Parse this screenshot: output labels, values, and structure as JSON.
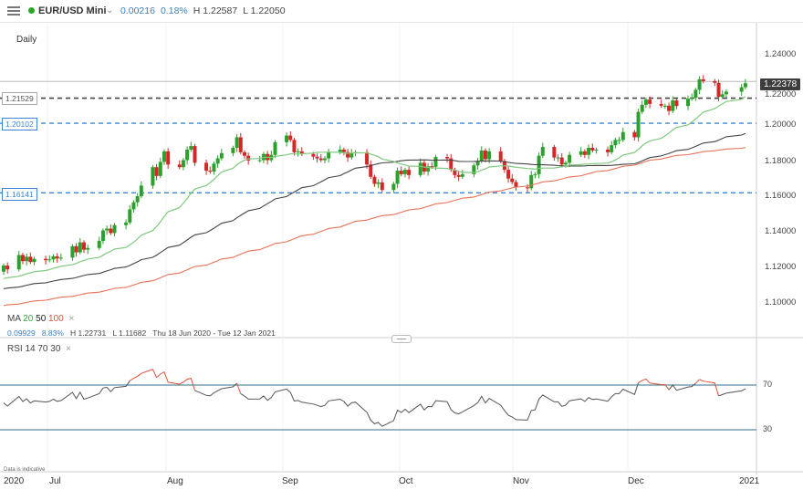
{
  "header": {
    "symbol": "EUR/USD Mini",
    "change": "0.00216",
    "change_pct": "0.18%",
    "high": "H 1.22587",
    "low": "L 1.22050"
  },
  "timeframe": "Daily",
  "price_labels": {
    "current": "1.22378",
    "levels": [
      "1.21529",
      "1.20102",
      "1.16141"
    ]
  },
  "price_axis": [
    "1.24000",
    "1.22000",
    "1.20000",
    "1.18000",
    "1.16000",
    "1.14000",
    "1.12000",
    "1.10000"
  ],
  "ma_legend": {
    "title": "MA",
    "p1": "20",
    "p2": "50",
    "p3": "100",
    "close": "×"
  },
  "stats": {
    "range": "0.09929",
    "range_pct": "8.83%",
    "high": "H 1.22731",
    "low": "L 1.11682",
    "dates": "Thu 18 Jun 2020 - Tue 12 Jan 2021"
  },
  "rsi_legend": {
    "title": "RSI",
    "p1": "14",
    "p2": "70",
    "p3": "30",
    "close": "×"
  },
  "rsi_axis": [
    "70",
    "30"
  ],
  "time_axis": [
    "2020",
    "Jul",
    "Aug",
    "Sep",
    "Oct",
    "Nov",
    "Dec",
    "2021"
  ],
  "credit": "Data is indicative",
  "colors": {
    "up": "#2ca02c",
    "down": "#d62728",
    "ma20": "#7fc97f",
    "ma50": "#444444",
    "ma100": "#e8735a",
    "level": "#3a86d4",
    "rsi": "#555555",
    "rsi_hot": "#e0533a"
  },
  "icons": [
    "menu-icon",
    "live-dot-icon",
    "chevron-down-icon"
  ],
  "chart_data": {
    "type": "candlestick",
    "title": "EUR/USD Mini",
    "timeframe": "Daily",
    "ylim": [
      1.1,
      1.245
    ],
    "x": [
      "2020-06-18",
      "2020-06-19",
      "2020-06-22",
      "2020-06-23",
      "2020-06-24",
      "2020-06-25",
      "2020-06-26",
      "2020-06-29",
      "2020-06-30",
      "2020-07-01",
      "2020-07-02",
      "2020-07-03",
      "2020-07-06",
      "2020-07-07",
      "2020-07-08",
      "2020-07-09",
      "2020-07-10",
      "2020-07-13",
      "2020-07-14",
      "2020-07-15",
      "2020-07-16",
      "2020-07-17",
      "2020-07-20",
      "2020-07-21",
      "2020-07-22",
      "2020-07-23",
      "2020-07-24",
      "2020-07-27",
      "2020-07-28",
      "2020-07-29",
      "2020-07-30",
      "2020-07-31",
      "2020-08-03",
      "2020-08-04",
      "2020-08-05",
      "2020-08-06",
      "2020-08-07",
      "2020-08-10",
      "2020-08-11",
      "2020-08-12",
      "2020-08-13",
      "2020-08-14",
      "2020-08-17",
      "2020-08-18",
      "2020-08-19",
      "2020-08-20",
      "2020-08-21",
      "2020-08-24",
      "2020-08-25",
      "2020-08-26",
      "2020-08-27",
      "2020-08-28",
      "2020-08-31",
      "2020-09-01",
      "2020-09-02",
      "2020-09-03",
      "2020-09-04",
      "2020-09-07",
      "2020-09-08",
      "2020-09-09",
      "2020-09-10",
      "2020-09-11",
      "2020-09-14",
      "2020-09-15",
      "2020-09-16",
      "2020-09-17",
      "2020-09-18",
      "2020-09-21",
      "2020-09-22",
      "2020-09-23",
      "2020-09-24",
      "2020-09-25",
      "2020-09-28",
      "2020-09-29",
      "2020-09-30",
      "2020-10-01",
      "2020-10-02",
      "2020-10-05",
      "2020-10-06",
      "2020-10-07",
      "2020-10-08",
      "2020-10-09",
      "2020-10-12",
      "2020-10-13",
      "2020-10-14",
      "2020-10-15",
      "2020-10-16",
      "2020-10-19",
      "2020-10-20",
      "2020-10-21",
      "2020-10-22",
      "2020-10-23",
      "2020-10-26",
      "2020-10-27",
      "2020-10-28",
      "2020-10-29",
      "2020-10-30",
      "2020-11-02",
      "2020-11-03",
      "2020-11-04",
      "2020-11-05",
      "2020-11-06",
      "2020-11-09",
      "2020-11-10",
      "2020-11-11",
      "2020-11-12",
      "2020-11-13",
      "2020-11-16",
      "2020-11-17",
      "2020-11-18",
      "2020-11-19",
      "2020-11-20",
      "2020-11-23",
      "2020-11-24",
      "2020-11-25",
      "2020-11-26",
      "2020-11-27",
      "2020-11-30",
      "2020-12-01",
      "2020-12-02",
      "2020-12-03",
      "2020-12-04",
      "2020-12-07",
      "2020-12-08",
      "2020-12-09",
      "2020-12-10",
      "2020-12-11",
      "2020-12-14",
      "2020-12-15",
      "2020-12-16",
      "2020-12-17",
      "2020-12-18",
      "2020-12-21",
      "2020-12-22",
      "2020-12-23",
      "2020-12-24",
      "2020-12-28",
      "2020-12-29"
    ],
    "close": [
      1.12,
      1.1178,
      1.126,
      1.1225,
      1.125,
      1.122,
      1.1238,
      1.123,
      1.1235,
      1.1252,
      1.124,
      1.1245,
      1.131,
      1.1275,
      1.1332,
      1.129,
      1.13,
      1.134,
      1.14,
      1.141,
      1.1385,
      1.143,
      1.1445,
      1.152,
      1.156,
      1.1595,
      1.1655,
      1.176,
      1.171,
      1.179,
      1.185,
      1.1775,
      1.176,
      1.18,
      1.186,
      1.188,
      1.1785,
      1.174,
      1.1735,
      1.178,
      1.181,
      1.184,
      1.187,
      1.193,
      1.1845,
      1.1825,
      1.1798,
      1.18,
      1.1835,
      1.18,
      1.183,
      1.1902,
      1.194,
      1.1915,
      1.1845,
      1.185,
      1.1835,
      1.182,
      1.181,
      1.18,
      1.181,
      1.1846,
      1.186,
      1.1846,
      1.1815,
      1.184,
      1.1845,
      1.1775,
      1.1705,
      1.1665,
      1.1673,
      1.163,
      1.1665,
      1.174,
      1.172,
      1.1745,
      1.1715,
      1.1785,
      1.1735,
      1.1765,
      1.1762,
      1.1818,
      1.181,
      1.1745,
      1.1715,
      1.1705,
      1.172,
      1.177,
      1.1795,
      1.1855,
      1.1805,
      1.185,
      1.1795,
      1.1745,
      1.1695,
      1.1675,
      1.1645,
      1.164,
      1.1715,
      1.172,
      1.1825,
      1.1875,
      1.1815,
      1.1815,
      1.1775,
      1.1785,
      1.183,
      1.185,
      1.183,
      1.187,
      1.1855,
      1.186,
      1.1845,
      1.1885,
      1.1915,
      1.1915,
      1.196,
      1.193,
      1.2075,
      1.2115,
      1.2145,
      1.212,
      1.211,
      1.211,
      1.208,
      1.214,
      1.2108,
      1.215,
      1.2155,
      1.22,
      1.226,
      1.225,
      1.224,
      1.216,
      1.2175,
      1.219,
      1.2215,
      1.2238
    ],
    "levels": [
      1.21529,
      1.20102,
      1.16141
    ],
    "current": 1.22378,
    "moving_averages": [
      {
        "name": "MA 20",
        "period": 20
      },
      {
        "name": "MA 50",
        "period": 50
      },
      {
        "name": "MA 100",
        "period": 100
      }
    ],
    "rsi": {
      "name": "RSI 14",
      "upper": 70,
      "lower": 30
    },
    "xlabel": "",
    "ylabel": ""
  }
}
